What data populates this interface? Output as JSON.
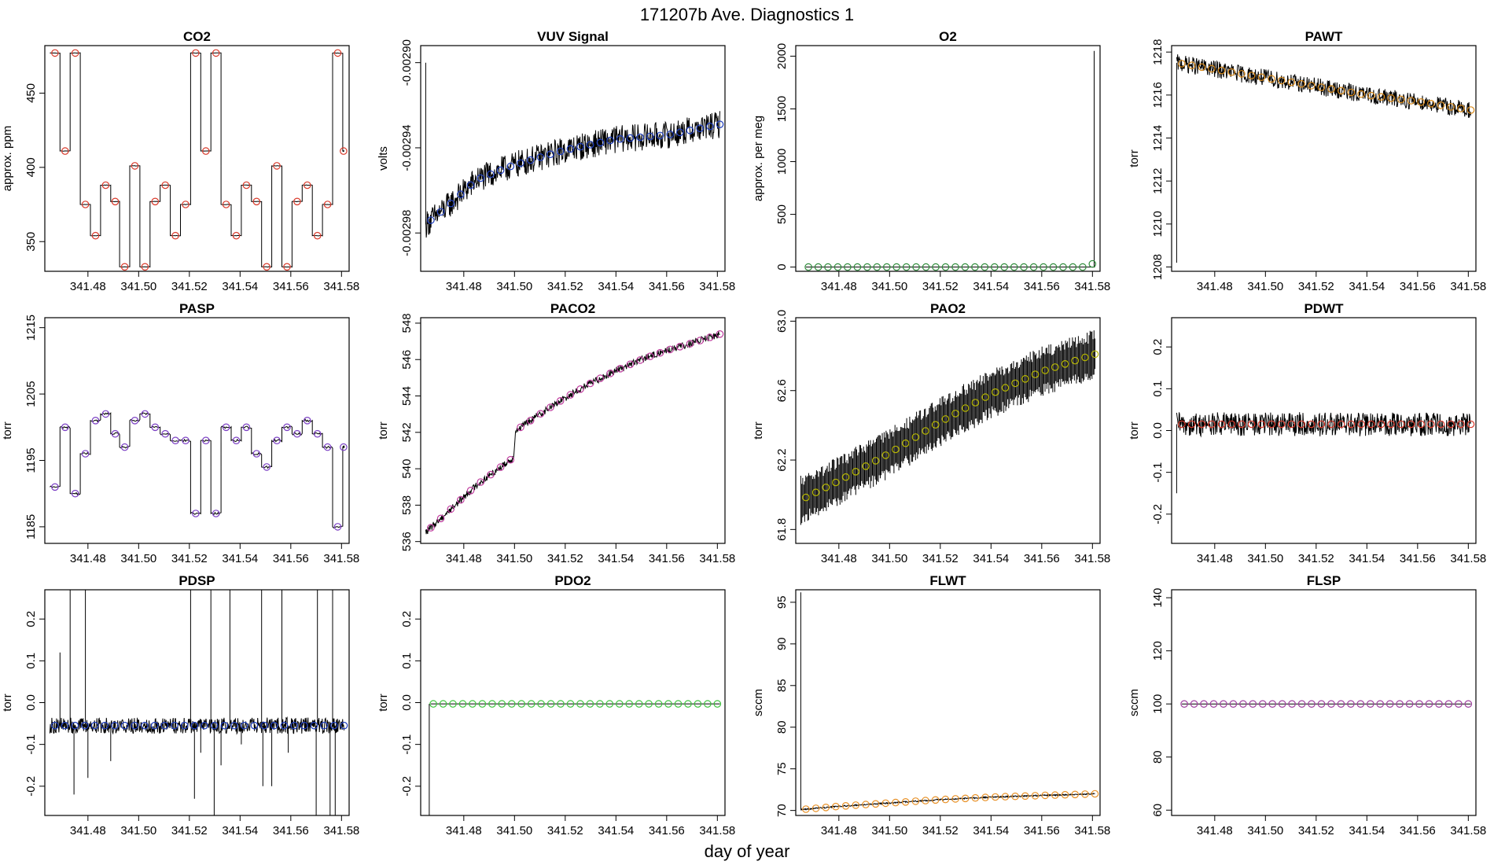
{
  "figure": {
    "title": "171207b   Ave. Diagnostics 1",
    "xlabel": "day of year"
  },
  "chart_data": [
    {
      "type": "line",
      "title": "CO2",
      "ylabel": "approx. ppm",
      "xlim": [
        341.463,
        341.583
      ],
      "ylim": [
        330,
        482
      ],
      "xticks": [
        "341.48",
        "341.50",
        "341.52",
        "341.54",
        "341.56",
        "341.58"
      ],
      "yticks": [
        "350",
        "400",
        "450"
      ],
      "marker_color": "#d93a2b",
      "series": [
        {
          "name": "CO2",
          "pattern": "steps",
          "steps": [
            [
              341.465,
              477
            ],
            [
              341.469,
              411
            ],
            [
              341.473,
              477
            ],
            [
              341.477,
              375
            ],
            [
              341.481,
              354
            ],
            [
              341.485,
              388
            ],
            [
              341.489,
              377
            ],
            [
              341.4925,
              333
            ],
            [
              341.4965,
              401
            ],
            [
              341.5005,
              333
            ],
            [
              341.5045,
              377
            ],
            [
              341.5085,
              388
            ],
            [
              341.5125,
              354
            ],
            [
              341.5165,
              375
            ],
            [
              341.5205,
              477
            ],
            [
              341.5245,
              411
            ],
            [
              341.5285,
              477
            ],
            [
              341.5325,
              375
            ],
            [
              341.5365,
              354
            ],
            [
              341.5405,
              388
            ],
            [
              341.5445,
              377
            ],
            [
              341.5485,
              333
            ],
            [
              341.5525,
              401
            ],
            [
              341.5565,
              333
            ],
            [
              341.5605,
              377
            ],
            [
              341.5645,
              388
            ],
            [
              341.5685,
              354
            ],
            [
              341.5725,
              375
            ],
            [
              341.5765,
              477
            ],
            [
              341.5805,
              411
            ]
          ]
        }
      ]
    },
    {
      "type": "line",
      "title": "VUV Signal",
      "ylabel": "volts",
      "xlim": [
        341.463,
        341.583
      ],
      "ylim": [
        -0.002998,
        -0.002892
      ],
      "xticks": [
        "341.48",
        "341.50",
        "341.52",
        "341.54",
        "341.56",
        "341.58"
      ],
      "yticks": [
        "-0.00298",
        "-0.00294",
        "-0.00290"
      ],
      "marker_color": "#1f3fbf",
      "series": [
        {
          "name": "VUV",
          "pattern": "noisy",
          "x_start": 341.465,
          "x_end": 341.581,
          "knots": [
            [
              341.465,
              -0.002976
            ],
            [
              341.475,
              -0.002966
            ],
            [
              341.485,
              -0.002955
            ],
            [
              341.5,
              -0.002948
            ],
            [
              341.52,
              -0.002941
            ],
            [
              341.54,
              -0.002936
            ],
            [
              341.56,
              -0.002934
            ],
            [
              341.581,
              -0.002929
            ]
          ],
          "noise": 4e-06,
          "spike": {
            "x": 341.465,
            "to": -0.0029
          }
        }
      ]
    },
    {
      "type": "line",
      "title": "O2",
      "ylabel": "approx. per meg",
      "xlim": [
        341.463,
        341.583
      ],
      "ylim": [
        -40,
        2100
      ],
      "xticks": [
        "341.48",
        "341.50",
        "341.52",
        "341.54",
        "341.56",
        "341.58"
      ],
      "yticks": [
        "0",
        "500",
        "1000",
        "1500",
        "2000"
      ],
      "marker_color": "#2e8b3a",
      "series": [
        {
          "name": "O2",
          "pattern": "flat",
          "x_start": 341.467,
          "x_end": 341.581,
          "value": 0,
          "end_spike": 2050,
          "last_value": 30
        }
      ]
    },
    {
      "type": "line",
      "title": "PAWT",
      "ylabel": "torr",
      "xlim": [
        341.463,
        341.583
      ],
      "ylim": [
        1207.8,
        1218.3
      ],
      "xticks": [
        "341.48",
        "341.50",
        "341.52",
        "341.54",
        "341.56",
        "341.58"
      ],
      "yticks": [
        "1208",
        "1210",
        "1212",
        "1214",
        "1216",
        "1218"
      ],
      "marker_color": "#d98a1a",
      "series": [
        {
          "name": "PAWT",
          "pattern": "noisy",
          "x_start": 341.465,
          "x_end": 341.581,
          "knots": [
            [
              341.465,
              1217.5
            ],
            [
              341.48,
              1217.2
            ],
            [
              341.5,
              1216.8
            ],
            [
              341.52,
              1216.4
            ],
            [
              341.54,
              1216.0
            ],
            [
              341.56,
              1215.7
            ],
            [
              341.581,
              1215.3
            ]
          ],
          "noise": 0.25,
          "spike": {
            "x": 341.465,
            "to": 1208.2
          }
        }
      ]
    },
    {
      "type": "line",
      "title": "PASP",
      "ylabel": "torr",
      "xlim": [
        341.463,
        341.583
      ],
      "ylim": [
        1182.5,
        1216.5
      ],
      "xticks": [
        "341.48",
        "341.50",
        "341.52",
        "341.54",
        "341.56",
        "341.58"
      ],
      "yticks": [
        "1185",
        "1195",
        "1205",
        "1215"
      ],
      "marker_color": "#7b3fc4",
      "series": [
        {
          "name": "PASP",
          "pattern": "steps",
          "steps": [
            [
              341.465,
              1191
            ],
            [
              341.469,
              1200
            ],
            [
              341.473,
              1190
            ],
            [
              341.477,
              1196
            ],
            [
              341.481,
              1201
            ],
            [
              341.485,
              1202
            ],
            [
              341.489,
              1199
            ],
            [
              341.4925,
              1197
            ],
            [
              341.4965,
              1201
            ],
            [
              341.5005,
              1202
            ],
            [
              341.5045,
              1200
            ],
            [
              341.5085,
              1199
            ],
            [
              341.5125,
              1198
            ],
            [
              341.5165,
              1198
            ],
            [
              341.5205,
              1187
            ],
            [
              341.5245,
              1198
            ],
            [
              341.5285,
              1187
            ],
            [
              341.5325,
              1200
            ],
            [
              341.5365,
              1198
            ],
            [
              341.5405,
              1200
            ],
            [
              341.5445,
              1196
            ],
            [
              341.5485,
              1194
            ],
            [
              341.5525,
              1198
            ],
            [
              341.5565,
              1200
            ],
            [
              341.5605,
              1199
            ],
            [
              341.5645,
              1201
            ],
            [
              341.5685,
              1199
            ],
            [
              341.5725,
              1197
            ],
            [
              341.5765,
              1185
            ],
            [
              341.5805,
              1197
            ]
          ]
        }
      ]
    },
    {
      "type": "line",
      "title": "PACO2",
      "ylabel": "torr",
      "xlim": [
        341.463,
        341.583
      ],
      "ylim": [
        535.9,
        548.3
      ],
      "xticks": [
        "341.48",
        "341.50",
        "341.52",
        "341.54",
        "341.56",
        "341.58"
      ],
      "yticks": [
        "536",
        "538",
        "540",
        "542",
        "544",
        "546",
        "548"
      ],
      "marker_color": "#c03fa0",
      "series": [
        {
          "name": "PACO2",
          "pattern": "noisy",
          "x_start": 341.465,
          "x_end": 341.581,
          "knots": [
            [
              341.465,
              536.5
            ],
            [
              341.475,
              537.8
            ],
            [
              341.485,
              539.1
            ],
            [
              341.4995,
              540.6
            ],
            [
              341.5005,
              542.1
            ],
            [
              341.51,
              543.0
            ],
            [
              341.52,
              543.9
            ],
            [
              341.53,
              544.7
            ],
            [
              341.54,
              545.4
            ],
            [
              341.55,
              546.0
            ],
            [
              341.56,
              546.5
            ],
            [
              341.57,
              546.9
            ],
            [
              341.581,
              547.4
            ]
          ],
          "noise": 0.12
        }
      ]
    },
    {
      "type": "line",
      "title": "PAO2",
      "ylabel": "torr",
      "xlim": [
        341.463,
        341.583
      ],
      "ylim": [
        61.72,
        63.02
      ],
      "xticks": [
        "341.48",
        "341.50",
        "341.52",
        "341.54",
        "341.56",
        "341.58"
      ],
      "yticks": [
        "61.8",
        "62.2",
        "62.6",
        "63.0"
      ],
      "marker_color": "#b8b800",
      "series": [
        {
          "name": "PAO2",
          "pattern": "band",
          "x_start": 341.465,
          "x_end": 341.581,
          "knots": [
            [
              341.465,
              61.97
            ],
            [
              341.48,
              62.08
            ],
            [
              341.5,
              62.24
            ],
            [
              341.52,
              62.42
            ],
            [
              341.54,
              62.58
            ],
            [
              341.56,
              62.71
            ],
            [
              341.581,
              62.81
            ]
          ],
          "band": 0.12
        }
      ]
    },
    {
      "type": "line",
      "title": "PDWT",
      "ylabel": "torr",
      "xlim": [
        341.463,
        341.583
      ],
      "ylim": [
        -0.27,
        0.27
      ],
      "xticks": [
        "341.48",
        "341.50",
        "341.52",
        "341.54",
        "341.56",
        "341.58"
      ],
      "yticks": [
        "-0.2",
        "-0.1",
        "0.0",
        "0.1",
        "0.2"
      ],
      "marker_color": "#d93a2b",
      "series": [
        {
          "name": "PDWT",
          "pattern": "noisy",
          "x_start": 341.465,
          "x_end": 341.581,
          "knots": [
            [
              341.465,
              0.015
            ],
            [
              341.581,
              0.015
            ]
          ],
          "noise": 0.018,
          "spike": {
            "x": 341.465,
            "to": -0.15
          }
        }
      ]
    },
    {
      "type": "line",
      "title": "PDSP",
      "ylabel": "torr",
      "xlim": [
        341.463,
        341.583
      ],
      "ylim": [
        -0.27,
        0.27
      ],
      "xticks": [
        "341.48",
        "341.50",
        "341.52",
        "341.54",
        "341.56",
        "341.58"
      ],
      "yticks": [
        "-0.2",
        "-0.1",
        "0.0",
        "0.1",
        "0.2"
      ],
      "marker_color": "#1f3fbf",
      "series": [
        {
          "name": "PDSP",
          "pattern": "noisy",
          "x_start": 341.465,
          "x_end": 341.581,
          "knots": [
            [
              341.465,
              -0.055
            ],
            [
              341.581,
              -0.055
            ]
          ],
          "noise": 0.012,
          "spikes": [
            [
              341.469,
              0.12
            ],
            [
              341.473,
              0.3
            ],
            [
              341.4745,
              -0.22
            ],
            [
              341.479,
              0.3
            ],
            [
              341.48,
              -0.18
            ],
            [
              341.489,
              -0.14
            ],
            [
              341.5205,
              0.3
            ],
            [
              341.522,
              -0.23
            ],
            [
              341.5245,
              -0.12
            ],
            [
              341.5285,
              0.3
            ],
            [
              341.5298,
              -0.3
            ],
            [
              341.5325,
              -0.15
            ],
            [
              341.536,
              0.3
            ],
            [
              341.5405,
              -0.1
            ],
            [
              341.5485,
              0.3
            ],
            [
              341.549,
              -0.2
            ],
            [
              341.5525,
              -0.2
            ],
            [
              341.5565,
              0.3
            ],
            [
              341.559,
              -0.12
            ],
            [
              341.57,
              -0.3
            ],
            [
              341.5705,
              0.3
            ],
            [
              341.5755,
              -0.3
            ],
            [
              341.5765,
              0.3
            ],
            [
              341.5775,
              -0.28
            ]
          ]
        }
      ]
    },
    {
      "type": "line",
      "title": "PDO2",
      "ylabel": "torr",
      "xlim": [
        341.463,
        341.583
      ],
      "ylim": [
        -0.27,
        0.27
      ],
      "xticks": [
        "341.48",
        "341.50",
        "341.52",
        "341.54",
        "341.56",
        "341.58"
      ],
      "yticks": [
        "-0.2",
        "-0.1",
        "0.0",
        "0.1",
        "0.2"
      ],
      "marker_color": "#3fc43f",
      "series": [
        {
          "name": "PDO2",
          "pattern": "flat",
          "x_start": 341.467,
          "x_end": 341.581,
          "value": -0.003,
          "start_spike": -0.3
        }
      ]
    },
    {
      "type": "line",
      "title": "FLWT",
      "ylabel": "sccm",
      "xlim": [
        341.463,
        341.583
      ],
      "ylim": [
        69.4,
        96.5
      ],
      "xticks": [
        "341.48",
        "341.50",
        "341.52",
        "341.54",
        "341.56",
        "341.58"
      ],
      "yticks": [
        "70",
        "75",
        "80",
        "85",
        "90",
        "95"
      ],
      "marker_color": "#e8922a",
      "series": [
        {
          "name": "FLWT",
          "pattern": "noisy",
          "x_start": 341.465,
          "x_end": 341.581,
          "knots": [
            [
              341.465,
              70.1
            ],
            [
              341.48,
              70.5
            ],
            [
              341.5,
              70.9
            ],
            [
              341.52,
              71.3
            ],
            [
              341.54,
              71.6
            ],
            [
              341.56,
              71.8
            ],
            [
              341.581,
              72.0
            ]
          ],
          "noise": 0.05,
          "spike": {
            "x": 341.465,
            "to": 96.2
          }
        }
      ]
    },
    {
      "type": "line",
      "title": "FLSP",
      "ylabel": "sccm",
      "xlim": [
        341.463,
        341.583
      ],
      "ylim": [
        58,
        143
      ],
      "xticks": [
        "341.48",
        "341.50",
        "341.52",
        "341.54",
        "341.56",
        "341.58"
      ],
      "yticks": [
        "60",
        "80",
        "100",
        "120",
        "140"
      ],
      "marker_color": "#a040a0",
      "series": [
        {
          "name": "FLSP",
          "pattern": "flat",
          "x_start": 341.467,
          "x_end": 341.581,
          "value": 100
        }
      ]
    }
  ]
}
